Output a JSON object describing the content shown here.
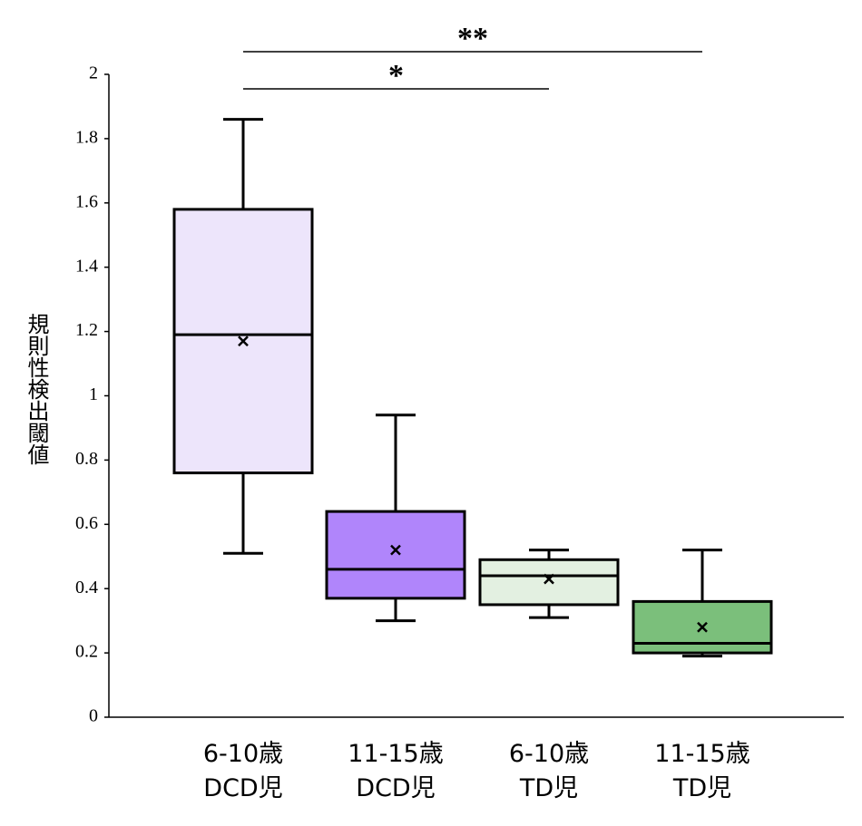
{
  "chart_data": {
    "type": "box",
    "y_label": "規則性検出閾値",
    "categories": [
      [
        "6-10歳",
        "DCD児"
      ],
      [
        "11-15歳",
        "DCD児"
      ],
      [
        "6-10歳",
        "TD児"
      ],
      [
        "11-15歳",
        "TD児"
      ]
    ],
    "boxes": [
      {
        "min": 0.51,
        "q1": 0.76,
        "median": 1.19,
        "q3": 1.58,
        "max": 1.86,
        "mean": 1.17,
        "color": "#ede5fb"
      },
      {
        "min": 0.3,
        "q1": 0.37,
        "median": 0.46,
        "q3": 0.64,
        "max": 0.94,
        "mean": 0.52,
        "color": "#b085fb"
      },
      {
        "min": 0.31,
        "q1": 0.35,
        "median": 0.44,
        "q3": 0.49,
        "max": 0.52,
        "mean": 0.43,
        "color": "#e3f0e1"
      },
      {
        "min": 0.19,
        "q1": 0.2,
        "median": 0.23,
        "q3": 0.36,
        "max": 0.52,
        "mean": 0.28,
        "color": "#7bbf7b"
      }
    ],
    "annotations": [
      "**",
      "*"
    ],
    "ylim": [
      0,
      2
    ],
    "yticks": [
      0,
      0.2,
      0.4,
      0.6,
      0.8,
      1,
      1.2,
      1.4,
      1.6,
      1.8,
      2
    ]
  }
}
